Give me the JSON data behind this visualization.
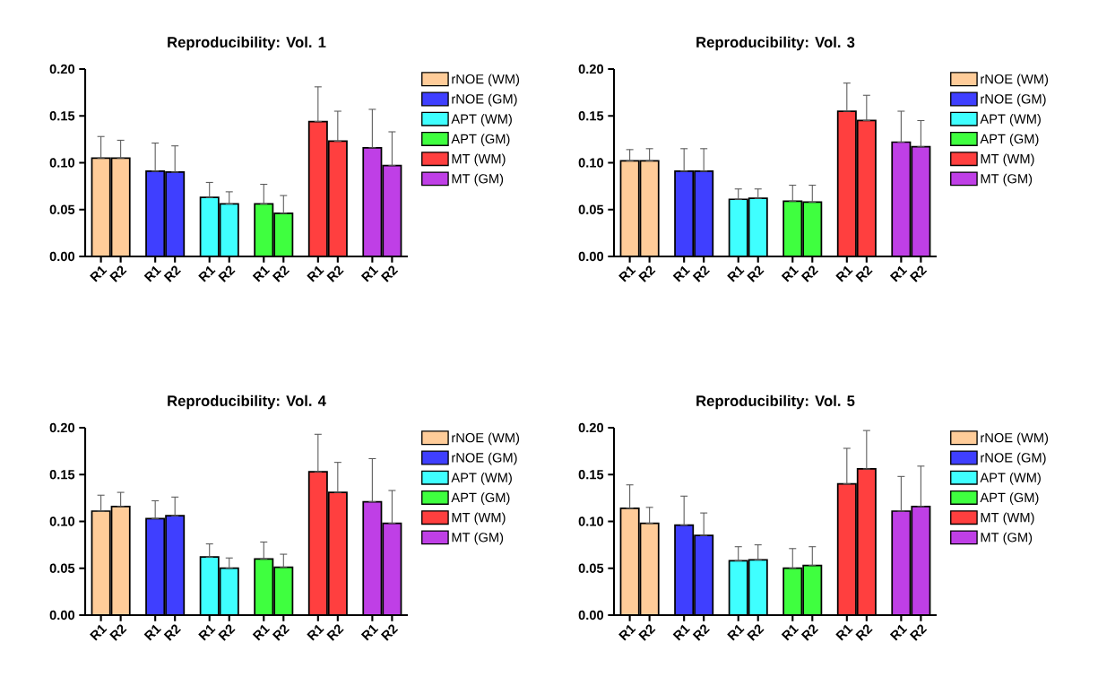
{
  "chart_data": [
    {
      "type": "bar",
      "title": "Reproducibility: Vol. 1",
      "categories": [
        "R1",
        "R2",
        "R1",
        "R2",
        "R1",
        "R2",
        "R1",
        "R2",
        "R1",
        "R2",
        "R1",
        "R2"
      ],
      "ylim": [
        0,
        0.2
      ],
      "yticks": [
        {
          "value": 0,
          "label": "0.00"
        },
        {
          "value": 0.05,
          "label": "0.05"
        },
        {
          "value": 0.1,
          "label": "0.10"
        },
        {
          "value": 0.15,
          "label": "0.15"
        },
        {
          "value": 0.2,
          "label": "0.20"
        }
      ],
      "legend": "right",
      "series": [
        {
          "name": "rNOE (WM)",
          "color": "#ffcc99",
          "values": [
            0.105,
            0.105,
            null,
            null,
            null,
            null,
            null,
            null,
            null,
            null,
            null,
            null
          ],
          "errors": [
            [
              0.105,
              0.128
            ],
            [
              0.105,
              0.124
            ],
            null,
            null,
            null,
            null,
            null,
            null,
            null,
            null,
            null,
            null
          ]
        },
        {
          "name": "rNOE (GM)",
          "color": "#3f3fff",
          "values": [
            null,
            null,
            0.091,
            0.09,
            null,
            null,
            null,
            null,
            null,
            null,
            null,
            null
          ],
          "errors": [
            null,
            null,
            [
              0.091,
              0.121
            ],
            [
              0.09,
              0.118
            ],
            null,
            null,
            null,
            null,
            null,
            null,
            null,
            null
          ]
        },
        {
          "name": "APT (WM)",
          "color": "#3fffff",
          "values": [
            null,
            null,
            null,
            null,
            0.063,
            0.056,
            null,
            null,
            null,
            null,
            null,
            null
          ],
          "errors": [
            null,
            null,
            null,
            null,
            [
              0.063,
              0.079
            ],
            [
              0.056,
              0.069
            ],
            null,
            null,
            null,
            null,
            null,
            null
          ]
        },
        {
          "name": "APT (GM)",
          "color": "#3fff3f",
          "values": [
            null,
            null,
            null,
            null,
            null,
            null,
            0.056,
            0.046,
            null,
            null,
            null,
            null
          ],
          "errors": [
            null,
            null,
            null,
            null,
            null,
            null,
            [
              0.056,
              0.077
            ],
            [
              0.046,
              0.065
            ],
            null,
            null,
            null,
            null
          ]
        },
        {
          "name": "MT (WM)",
          "color": "#ff3f3f",
          "values": [
            null,
            null,
            null,
            null,
            null,
            null,
            null,
            null,
            0.144,
            0.123,
            null,
            null
          ],
          "errors": [
            null,
            null,
            null,
            null,
            null,
            null,
            null,
            null,
            [
              0.144,
              0.181
            ],
            [
              0.123,
              0.155
            ],
            null,
            null
          ]
        },
        {
          "name": "MT (GM)",
          "color": "#bf3fe6",
          "values": [
            null,
            null,
            null,
            null,
            null,
            null,
            null,
            null,
            null,
            null,
            0.116,
            0.097
          ],
          "errors": [
            null,
            null,
            null,
            null,
            null,
            null,
            null,
            null,
            null,
            null,
            [
              0.116,
              0.157
            ],
            [
              0.097,
              0.133
            ]
          ]
        }
      ]
    },
    {
      "type": "bar",
      "title": "Reproducibility: Vol. 3",
      "categories": [
        "R1",
        "R2",
        "R1",
        "R2",
        "R1",
        "R2",
        "R1",
        "R2",
        "R1",
        "R2",
        "R1",
        "R2"
      ],
      "ylim": [
        0,
        0.2
      ],
      "yticks": [
        {
          "value": 0,
          "label": "0.00"
        },
        {
          "value": 0.05,
          "label": "0.05"
        },
        {
          "value": 0.1,
          "label": "0.10"
        },
        {
          "value": 0.15,
          "label": "0.15"
        },
        {
          "value": 0.2,
          "label": "0.20"
        }
      ],
      "legend": "right",
      "series": [
        {
          "name": "rNOE (WM)",
          "color": "#ffcc99",
          "values": [
            0.102,
            0.102,
            null,
            null,
            null,
            null,
            null,
            null,
            null,
            null,
            null,
            null
          ],
          "errors": [
            [
              0.102,
              0.114
            ],
            [
              0.102,
              0.115
            ],
            null,
            null,
            null,
            null,
            null,
            null,
            null,
            null,
            null,
            null
          ]
        },
        {
          "name": "rNOE (GM)",
          "color": "#3f3fff",
          "values": [
            null,
            null,
            0.091,
            0.091,
            null,
            null,
            null,
            null,
            null,
            null,
            null,
            null
          ],
          "errors": [
            null,
            null,
            [
              0.091,
              0.115
            ],
            [
              0.091,
              0.115
            ],
            null,
            null,
            null,
            null,
            null,
            null,
            null,
            null
          ]
        },
        {
          "name": "APT (WM)",
          "color": "#3fffff",
          "values": [
            null,
            null,
            null,
            null,
            0.061,
            0.062,
            null,
            null,
            null,
            null,
            null,
            null
          ],
          "errors": [
            null,
            null,
            null,
            null,
            [
              0.061,
              0.072
            ],
            [
              0.062,
              0.072
            ],
            null,
            null,
            null,
            null,
            null,
            null
          ]
        },
        {
          "name": "APT (GM)",
          "color": "#3fff3f",
          "values": [
            null,
            null,
            null,
            null,
            null,
            null,
            0.059,
            0.058,
            null,
            null,
            null,
            null
          ],
          "errors": [
            null,
            null,
            null,
            null,
            null,
            null,
            [
              0.059,
              0.076
            ],
            [
              0.058,
              0.076
            ],
            null,
            null,
            null,
            null
          ]
        },
        {
          "name": "MT (WM)",
          "color": "#ff3f3f",
          "values": [
            null,
            null,
            null,
            null,
            null,
            null,
            null,
            null,
            0.155,
            0.145,
            null,
            null
          ],
          "errors": [
            null,
            null,
            null,
            null,
            null,
            null,
            null,
            null,
            [
              0.155,
              0.185
            ],
            [
              0.145,
              0.172
            ],
            null,
            null
          ]
        },
        {
          "name": "MT (GM)",
          "color": "#bf3fe6",
          "values": [
            null,
            null,
            null,
            null,
            null,
            null,
            null,
            null,
            null,
            null,
            0.122,
            0.117
          ],
          "errors": [
            null,
            null,
            null,
            null,
            null,
            null,
            null,
            null,
            null,
            null,
            [
              0.122,
              0.155
            ],
            [
              0.117,
              0.145
            ]
          ]
        }
      ]
    },
    {
      "type": "bar",
      "title": "Reproducibility: Vol. 4",
      "categories": [
        "R1",
        "R2",
        "R1",
        "R2",
        "R1",
        "R2",
        "R1",
        "R2",
        "R1",
        "R2",
        "R1",
        "R2"
      ],
      "ylim": [
        0,
        0.2
      ],
      "yticks": [
        {
          "value": 0,
          "label": "0.00"
        },
        {
          "value": 0.05,
          "label": "0.05"
        },
        {
          "value": 0.1,
          "label": "0.10"
        },
        {
          "value": 0.15,
          "label": "0.15"
        },
        {
          "value": 0.2,
          "label": "0.20"
        }
      ],
      "legend": "right",
      "series": [
        {
          "name": "rNOE (WM)",
          "color": "#ffcc99",
          "values": [
            0.111,
            0.116,
            null,
            null,
            null,
            null,
            null,
            null,
            null,
            null,
            null,
            null
          ],
          "errors": [
            [
              0.111,
              0.128
            ],
            [
              0.116,
              0.131
            ],
            null,
            null,
            null,
            null,
            null,
            null,
            null,
            null,
            null,
            null
          ]
        },
        {
          "name": "rNOE (GM)",
          "color": "#3f3fff",
          "values": [
            null,
            null,
            0.103,
            0.106,
            null,
            null,
            null,
            null,
            null,
            null,
            null,
            null
          ],
          "errors": [
            null,
            null,
            [
              0.103,
              0.122
            ],
            [
              0.106,
              0.126
            ],
            null,
            null,
            null,
            null,
            null,
            null,
            null,
            null
          ]
        },
        {
          "name": "APT (WM)",
          "color": "#3fffff",
          "values": [
            null,
            null,
            null,
            null,
            0.062,
            0.05,
            null,
            null,
            null,
            null,
            null,
            null
          ],
          "errors": [
            null,
            null,
            null,
            null,
            [
              0.062,
              0.076
            ],
            [
              0.05,
              0.061
            ],
            null,
            null,
            null,
            null,
            null,
            null
          ]
        },
        {
          "name": "APT (GM)",
          "color": "#3fff3f",
          "values": [
            null,
            null,
            null,
            null,
            null,
            null,
            0.06,
            0.051,
            null,
            null,
            null,
            null
          ],
          "errors": [
            null,
            null,
            null,
            null,
            null,
            null,
            [
              0.06,
              0.078
            ],
            [
              0.051,
              0.065
            ],
            null,
            null,
            null,
            null
          ]
        },
        {
          "name": "MT (WM)",
          "color": "#ff3f3f",
          "values": [
            null,
            null,
            null,
            null,
            null,
            null,
            null,
            null,
            0.153,
            0.131,
            null,
            null
          ],
          "errors": [
            null,
            null,
            null,
            null,
            null,
            null,
            null,
            null,
            [
              0.153,
              0.193
            ],
            [
              0.131,
              0.163
            ],
            null,
            null
          ]
        },
        {
          "name": "MT (GM)",
          "color": "#bf3fe6",
          "values": [
            null,
            null,
            null,
            null,
            null,
            null,
            null,
            null,
            null,
            null,
            0.121,
            0.098
          ],
          "errors": [
            null,
            null,
            null,
            null,
            null,
            null,
            null,
            null,
            null,
            null,
            [
              0.121,
              0.167
            ],
            [
              0.098,
              0.133
            ]
          ]
        }
      ]
    },
    {
      "type": "bar",
      "title": "Reproducibility: Vol. 5",
      "categories": [
        "R1",
        "R2",
        "R1",
        "R2",
        "R1",
        "R2",
        "R1",
        "R2",
        "R1",
        "R2",
        "R1",
        "R2"
      ],
      "ylim": [
        0,
        0.2
      ],
      "yticks": [
        {
          "value": 0,
          "label": "0.00"
        },
        {
          "value": 0.05,
          "label": "0.05"
        },
        {
          "value": 0.1,
          "label": "0.10"
        },
        {
          "value": 0.15,
          "label": "0.15"
        },
        {
          "value": 0.2,
          "label": "0.20"
        }
      ],
      "legend": "right",
      "series": [
        {
          "name": "rNOE (WM)",
          "color": "#ffcc99",
          "values": [
            0.114,
            0.098,
            null,
            null,
            null,
            null,
            null,
            null,
            null,
            null,
            null,
            null
          ],
          "errors": [
            [
              0.114,
              0.139
            ],
            [
              0.098,
              0.115
            ],
            null,
            null,
            null,
            null,
            null,
            null,
            null,
            null,
            null,
            null
          ]
        },
        {
          "name": "rNOE (GM)",
          "color": "#3f3fff",
          "values": [
            null,
            null,
            0.096,
            0.085,
            null,
            null,
            null,
            null,
            null,
            null,
            null,
            null
          ],
          "errors": [
            null,
            null,
            [
              0.096,
              0.127
            ],
            [
              0.085,
              0.109
            ],
            null,
            null,
            null,
            null,
            null,
            null,
            null,
            null
          ]
        },
        {
          "name": "APT (WM)",
          "color": "#3fffff",
          "values": [
            null,
            null,
            null,
            null,
            0.058,
            0.059,
            null,
            null,
            null,
            null,
            null,
            null
          ],
          "errors": [
            null,
            null,
            null,
            null,
            [
              0.058,
              0.073
            ],
            [
              0.059,
              0.075
            ],
            null,
            null,
            null,
            null,
            null,
            null
          ]
        },
        {
          "name": "APT (GM)",
          "color": "#3fff3f",
          "values": [
            null,
            null,
            null,
            null,
            null,
            null,
            0.05,
            0.053,
            null,
            null,
            null,
            null
          ],
          "errors": [
            null,
            null,
            null,
            null,
            null,
            null,
            [
              0.05,
              0.071
            ],
            [
              0.053,
              0.073
            ],
            null,
            null,
            null,
            null
          ]
        },
        {
          "name": "MT (WM)",
          "color": "#ff3f3f",
          "values": [
            null,
            null,
            null,
            null,
            null,
            null,
            null,
            null,
            0.14,
            0.156,
            null,
            null
          ],
          "errors": [
            null,
            null,
            null,
            null,
            null,
            null,
            null,
            null,
            [
              0.14,
              0.178
            ],
            [
              0.156,
              0.197
            ],
            null,
            null
          ]
        },
        {
          "name": "MT (GM)",
          "color": "#bf3fe6",
          "values": [
            null,
            null,
            null,
            null,
            null,
            null,
            null,
            null,
            null,
            null,
            0.111,
            0.116
          ],
          "errors": [
            null,
            null,
            null,
            null,
            null,
            null,
            null,
            null,
            null,
            null,
            [
              0.111,
              0.148
            ],
            [
              0.116,
              0.159
            ]
          ]
        }
      ]
    }
  ]
}
